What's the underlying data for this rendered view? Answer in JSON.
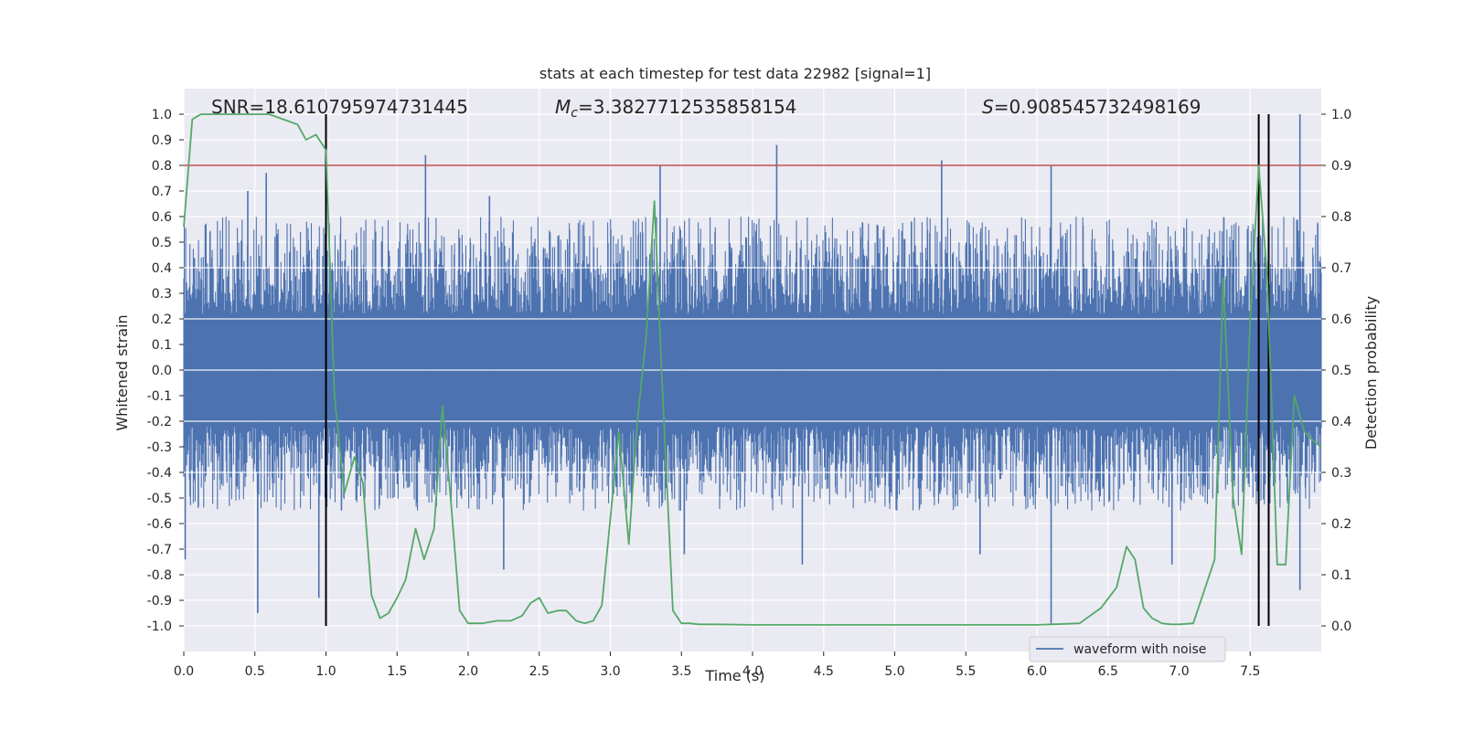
{
  "chart_data": {
    "type": "line",
    "title": "stats at each timestep for test data 22982 [signal=1]",
    "xlabel": "Time (s)",
    "ylabel_left": "Whitened strain",
    "ylabel_right": "Detection probability",
    "xlim": [
      0.0,
      8.0
    ],
    "ylim_left": [
      -1.1,
      1.1
    ],
    "ylim_right": [
      -0.05,
      1.05
    ],
    "x_ticks": [
      "0.0",
      "0.5",
      "1.0",
      "1.5",
      "2.0",
      "2.5",
      "3.0",
      "3.5",
      "4.0",
      "4.5",
      "5.0",
      "5.5",
      "6.0",
      "6.5",
      "7.0",
      "7.5"
    ],
    "y_ticks_left": [
      "1.0",
      "0.9",
      "0.8",
      "0.7",
      "0.6",
      "0.5",
      "0.4",
      "0.3",
      "0.2",
      "0.1",
      "0.0",
      "-0.1",
      "-0.2",
      "-0.3",
      "-0.4",
      "-0.5",
      "-0.6",
      "-0.7",
      "-0.8",
      "-0.9",
      "-1.0"
    ],
    "y_ticks_right": [
      "1.0",
      "0.9",
      "0.8",
      "0.7",
      "0.6",
      "0.5",
      "0.4",
      "0.3",
      "0.2",
      "0.1",
      "0.0"
    ],
    "grid": true,
    "legend_position": "lower-right",
    "legend": [
      "waveform with noise"
    ],
    "annotations": {
      "snr": "SNR=18.610795974731445",
      "mc_symbol": "M",
      "mc_sub": "c",
      "mc_value": "=3.3827712535858154",
      "s_symbol": "S",
      "s_value": "=0.908545732498169"
    },
    "colors": {
      "waveform": "#4c72b0",
      "probability": "#55a868",
      "threshold": "#c44e52",
      "event_lines": "#000000",
      "plot_bg": "#eaeaf2",
      "grid": "#ffffff"
    },
    "series": [
      {
        "name": "waveform with noise",
        "axis": "left",
        "noise_envelope_upper": 0.6,
        "noise_envelope_lower": -0.55,
        "spikes": [
          {
            "x": 0.01,
            "y": -0.74
          },
          {
            "x": 0.45,
            "y": 0.7
          },
          {
            "x": 0.52,
            "y": -0.95
          },
          {
            "x": 0.58,
            "y": 0.77
          },
          {
            "x": 0.95,
            "y": -0.89
          },
          {
            "x": 1.7,
            "y": 0.84
          },
          {
            "x": 2.15,
            "y": 0.68
          },
          {
            "x": 2.25,
            "y": -0.78
          },
          {
            "x": 3.35,
            "y": 0.8
          },
          {
            "x": 3.52,
            "y": -0.72
          },
          {
            "x": 4.17,
            "y": 0.88
          },
          {
            "x": 4.35,
            "y": -0.76
          },
          {
            "x": 5.33,
            "y": 0.82
          },
          {
            "x": 5.6,
            "y": -0.72
          },
          {
            "x": 6.1,
            "y": 0.8
          },
          {
            "x": 6.1,
            "y": -0.99
          },
          {
            "x": 6.95,
            "y": -0.76
          },
          {
            "x": 7.85,
            "y": 1.0
          },
          {
            "x": 7.85,
            "y": -0.86
          }
        ]
      },
      {
        "name": "",
        "axis": "right",
        "x": [
          0.0,
          0.06,
          0.12,
          0.2,
          0.3,
          0.4,
          0.5,
          0.6,
          0.7,
          0.8,
          0.86,
          0.93,
          1.0,
          1.06,
          1.13,
          1.2,
          1.26,
          1.32,
          1.38,
          1.44,
          1.5,
          1.56,
          1.63,
          1.69,
          1.76,
          1.82,
          1.88,
          1.94,
          2.0,
          2.1,
          2.2,
          2.3,
          2.38,
          2.44,
          2.5,
          2.56,
          2.63,
          2.69,
          2.76,
          2.82,
          2.88,
          2.94,
          3.06,
          3.13,
          3.19,
          3.25,
          3.31,
          3.36,
          3.44,
          3.5,
          3.56,
          3.62,
          3.75,
          4.0,
          4.5,
          5.0,
          5.5,
          6.0,
          6.3,
          6.45,
          6.56,
          6.63,
          6.69,
          6.75,
          6.81,
          6.88,
          6.94,
          7.0,
          7.1,
          7.25,
          7.31,
          7.38,
          7.44,
          7.5,
          7.56,
          7.62,
          7.69,
          7.75,
          7.81,
          7.88,
          7.95,
          8.0
        ],
        "y": [
          0.78,
          0.99,
          1.0,
          1.0,
          1.0,
          1.0,
          1.0,
          1.0,
          0.99,
          0.98,
          0.95,
          0.96,
          0.93,
          0.45,
          0.26,
          0.33,
          0.28,
          0.06,
          0.015,
          0.025,
          0.055,
          0.09,
          0.19,
          0.13,
          0.19,
          0.43,
          0.24,
          0.03,
          0.005,
          0.005,
          0.01,
          0.01,
          0.02,
          0.045,
          0.055,
          0.025,
          0.03,
          0.03,
          0.01,
          0.005,
          0.01,
          0.04,
          0.38,
          0.16,
          0.4,
          0.56,
          0.83,
          0.5,
          0.03,
          0.005,
          0.005,
          0.003,
          0.003,
          0.002,
          0.002,
          0.002,
          0.002,
          0.002,
          0.005,
          0.035,
          0.075,
          0.155,
          0.13,
          0.035,
          0.015,
          0.005,
          0.003,
          0.003,
          0.005,
          0.13,
          0.68,
          0.25,
          0.14,
          0.6,
          0.9,
          0.68,
          0.12,
          0.12,
          0.45,
          0.38,
          0.36,
          0.35
        ]
      }
    ],
    "threshold_left": 0.8,
    "event_lines_x": [
      1.0,
      7.56,
      7.63
    ]
  }
}
